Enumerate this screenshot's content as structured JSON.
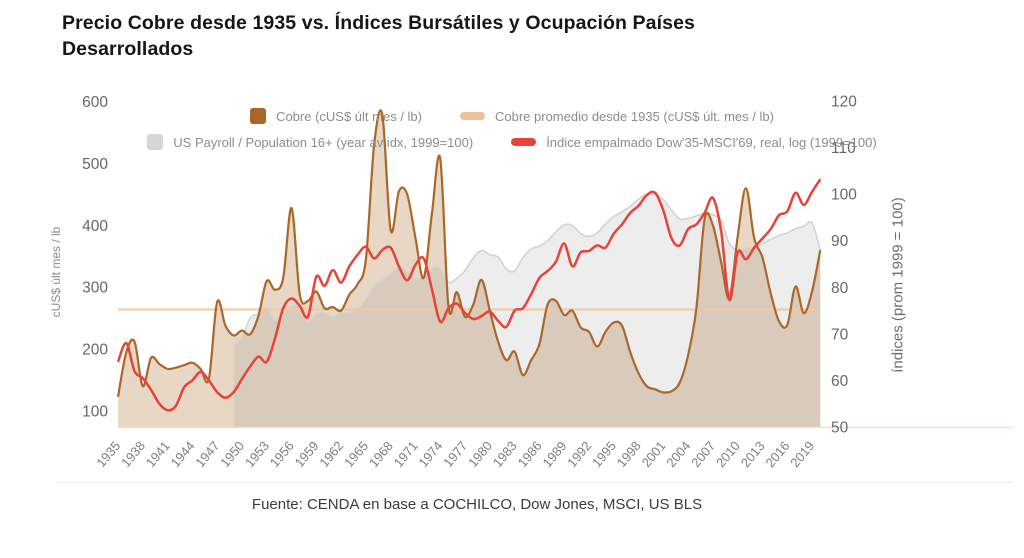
{
  "title": {
    "line1": "Precio Cobre desde 1935 vs. Índices Bursátiles y Ocupación Países",
    "line2": "Desarrollados"
  },
  "source": {
    "text": "Fuente: CENDA en base a COCHILCO, Dow Jones, MSCI, US BLS"
  },
  "legend": {
    "rows": [
      [
        {
          "label": "Cobre (cUS$ últ mes / lb)",
          "swatch": "square",
          "color": "#aa6624"
        },
        {
          "label": "Cobre promedio desde 1935 (cUS$ últ. mes / lb)",
          "swatch": "pill",
          "color": "#f0c194"
        }
      ],
      [
        {
          "label": "US Payroll / Population 16+ (year av idx, 1999=100)",
          "swatch": "square",
          "color": "#d6d6d6"
        },
        {
          "label": "Índice empalmado Dow'35-MSCI'69, real, log (1999=100)",
          "swatch": "pill",
          "color": "#e74338"
        }
      ]
    ]
  },
  "chart_data": {
    "type": "area",
    "subtype": "multi-series time combo (two y axes)",
    "x_axis": {
      "tick_years": [
        1935,
        1938,
        1941,
        1944,
        1947,
        1950,
        1953,
        1956,
        1959,
        1962,
        1965,
        1968,
        1971,
        1974,
        1977,
        1980,
        1983,
        1986,
        1989,
        1992,
        1995,
        1998,
        2001,
        2004,
        2007,
        2010,
        2013,
        2016,
        2019
      ],
      "data_start_year": 1935,
      "data_end_year": 2020
    },
    "left_axis": {
      "title": "cUS$ últ mes / lb",
      "ticks": [
        100,
        200,
        300,
        400,
        500,
        600
      ],
      "range_bottom_equivalent": 71
    },
    "right_axis": {
      "title": "índices (prom 1999 = 100)",
      "ticks": [
        50,
        60,
        70,
        80,
        90,
        100,
        110,
        120
      ]
    },
    "grid": false,
    "legend_position": "top-center, two rows, transparent background",
    "series": [
      {
        "id": "cobre",
        "name": "Cobre (cUS$ últ mes / lb)",
        "type": "area",
        "axis": "left",
        "color": "#aa6729",
        "fill": "rgba(176,124,60,0.30)",
        "start_year": 1935,
        "values": [
          123,
          195,
          212,
          140,
          186,
          176,
          168,
          170,
          174,
          178,
          168,
          152,
          276,
          238,
          222,
          230,
          224,
          254,
          310,
          296,
          315,
          428,
          288,
          278,
          293,
          266,
          268,
          262,
          288,
          305,
          345,
          530,
          578,
          392,
          455,
          450,
          380,
          315,
          420,
          508,
          268,
          292,
          252,
          272,
          312,
          262,
          212,
          182,
          196,
          158,
          182,
          208,
          272,
          278,
          255,
          262,
          235,
          228,
          204,
          228,
          243,
          238,
          195,
          161,
          140,
          135,
          130,
          132,
          146,
          190,
          266,
          410,
          400,
          340,
          282,
          382,
          460,
          379,
          348,
          290,
          245,
          239,
          301,
          258,
          293,
          360
        ]
      },
      {
        "id": "cobre-promedio",
        "name": "Cobre promedio desde 1935 (cUS$ últ. mes / lb)",
        "type": "hline",
        "axis": "left",
        "color": "#f5c79b",
        "value": 264
      },
      {
        "id": "us-payroll",
        "name": "US Payroll / Population 16+ (year av idx, 1999=100)",
        "type": "area",
        "axis": "right",
        "color": "#d3d3d6",
        "fill": "rgba(146,146,152,0.16)",
        "start_year": 1949,
        "values": [
          67.6,
          69.3,
          73.4,
          74.3,
          75.5,
          72.9,
          74.4,
          76.0,
          75.8,
          72.7,
          74.4,
          74.5,
          73.7,
          74.5,
          74.6,
          75.4,
          77.4,
          80.4,
          81.6,
          82.9,
          84.4,
          83.3,
          81.8,
          82.4,
          84.1,
          84.0,
          81.1,
          81.9,
          83.6,
          86.3,
          87.9,
          87.0,
          86.5,
          83.9,
          83.5,
          86.4,
          88.2,
          88.8,
          90.0,
          91.9,
          93.4,
          93.3,
          91.5,
          90.9,
          91.7,
          93.6,
          95.2,
          96.2,
          97.4,
          98.9,
          100.0,
          99.9,
          98.8,
          96.5,
          94.7,
          94.8,
          95.3,
          95.8,
          95.6,
          94.3,
          89.4,
          88.0,
          88.4,
          88.6,
          89.4,
          90.3,
          91.1,
          91.7,
          92.6,
          93.1,
          93.8,
          88.0
        ]
      },
      {
        "id": "indice-empalmado",
        "name": "Índice empalmado Dow'35-MSCI'69, real, log (1999=100)",
        "type": "line",
        "axis": "right",
        "color": "#e74338",
        "start_year": 1935,
        "values": [
          64,
          68,
          62,
          60.5,
          58,
          55,
          53.6,
          54.5,
          58.5,
          60,
          61.8,
          60,
          57.5,
          56.3,
          57.5,
          60.3,
          63,
          65.1,
          64,
          69,
          75.5,
          77.6,
          76,
          73.7,
          82.3,
          80.3,
          83.7,
          81,
          84.5,
          87,
          88.7,
          86.2,
          88,
          88.5,
          84.5,
          81.5,
          84.8,
          86.2,
          79.5,
          72.6,
          75.5,
          76.5,
          74.5,
          73.2,
          73.8,
          74.8,
          72.8,
          71.5,
          75,
          75.5,
          78.5,
          82,
          83.5,
          85.5,
          89.4,
          84.5,
          87.5,
          87.8,
          89,
          88.5,
          91.5,
          93.5,
          96,
          97.5,
          99.8,
          100.3,
          96.5,
          90.5,
          89,
          92.5,
          93.5,
          96,
          99.2,
          92,
          77.3,
          87.5,
          86,
          88.5,
          90.5,
          92.5,
          95.5,
          96.3,
          100.3,
          97.7,
          100.5,
          103.2
        ]
      }
    ]
  }
}
